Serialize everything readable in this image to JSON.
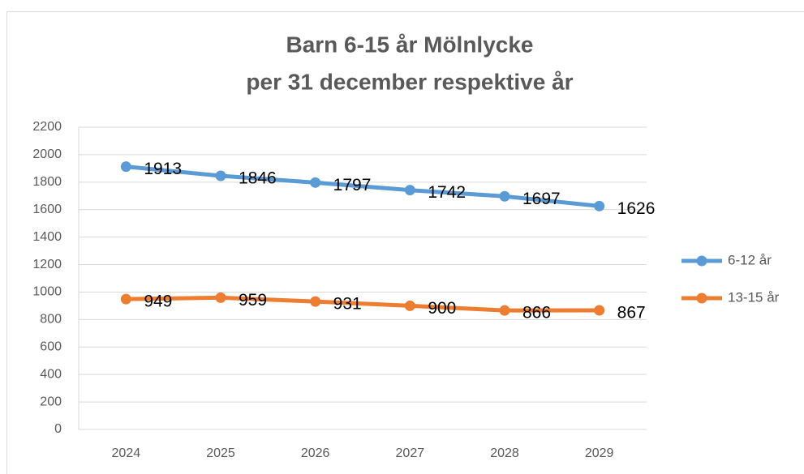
{
  "chart_data": {
    "type": "line",
    "title": [
      "Barn 6-15 år Mölnlycke",
      "per 31 december respektive år"
    ],
    "categories": [
      "2024",
      "2025",
      "2026",
      "2027",
      "2028",
      "2029"
    ],
    "series": [
      {
        "name": "6-12 år",
        "color": "#5b9bd5",
        "values": [
          1913,
          1846,
          1797,
          1742,
          1697,
          1626
        ]
      },
      {
        "name": "13-15 år",
        "color": "#ed7d31",
        "values": [
          949,
          959,
          931,
          900,
          866,
          867
        ]
      }
    ],
    "ylim": [
      0,
      2200
    ],
    "yticks": [
      0,
      200,
      400,
      600,
      800,
      1000,
      1200,
      1400,
      1600,
      1800,
      2000,
      2200
    ],
    "grid": true,
    "legend": "right"
  }
}
